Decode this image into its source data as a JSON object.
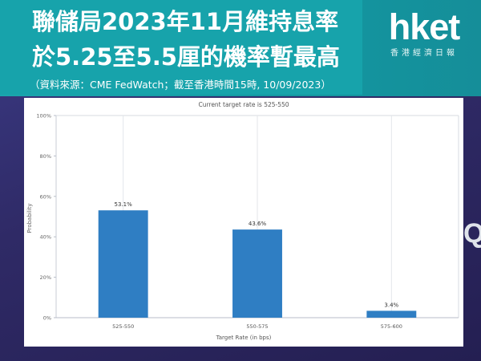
{
  "header": {
    "title_line1": "聯儲局2023年11月維持息率",
    "title_line2": "於5.25至5.5厘的機率暫最高",
    "source": "（資料來源：CME FedWatch；截至香港時間15時, 10/09/2023）"
  },
  "logo": {
    "main": "hket",
    "sub": "香港經濟日報"
  },
  "watermark": "Q",
  "colors": {
    "header": "#17a3ab",
    "bar": "#2f7ec3",
    "background": "#2e2a63"
  },
  "chart_data": {
    "type": "bar",
    "title": "Current target rate is 525-550",
    "xlabel": "Target Rate (in bps)",
    "ylabel": "Probability",
    "categories": [
      "525-550",
      "550-575",
      "575-600"
    ],
    "values": [
      53.1,
      43.6,
      3.4
    ],
    "data_labels": [
      "53.1%",
      "43.6%",
      "3.4%"
    ],
    "yticks": [
      "0%",
      "20%",
      "40%",
      "60%",
      "80%",
      "100%"
    ],
    "ylim": [
      0,
      100
    ],
    "grid": "vertical"
  }
}
